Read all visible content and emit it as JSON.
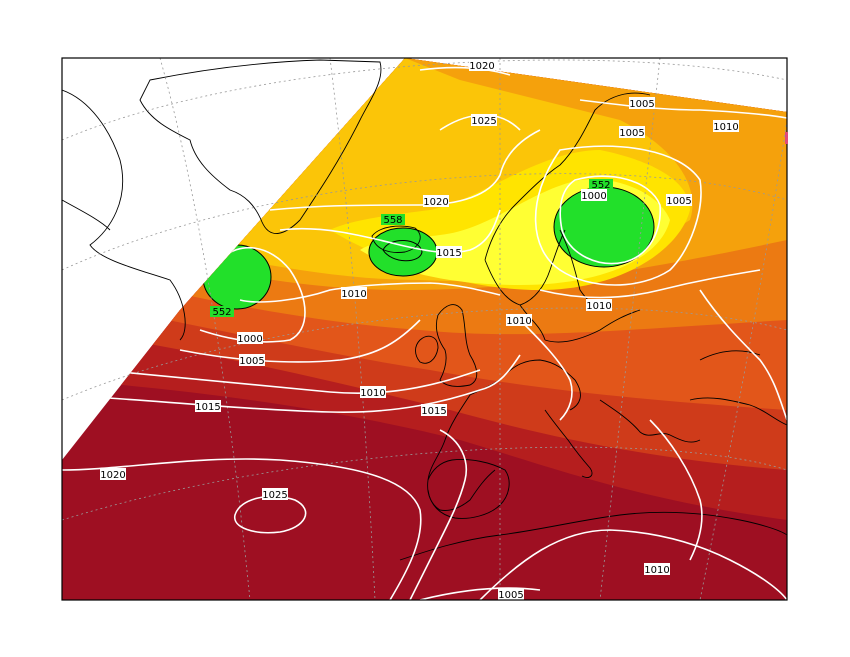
{
  "map": {
    "projection": "polar-stereographic",
    "basemap": "North Atlantic and Europe coastlines",
    "graticule": "dotted-grey",
    "fill_field": {
      "colors": [
        "#9e0f22",
        "#b51e1e",
        "#cf3b1a",
        "#e2561a",
        "#ec7a12",
        "#f5a10c",
        "#fbc508",
        "#ffe400",
        "#ffff33",
        "#22e02a"
      ],
      "low_highlight_color": "#22e02a"
    },
    "contour_color": "#ffffff",
    "isobar_labels": [
      "1020",
      "1025",
      "1005",
      "1005",
      "1010",
      "552",
      "1000",
      "1005",
      "1020",
      "558",
      "1015",
      "1010",
      "1010",
      "1010",
      "552",
      "1000",
      "1005",
      "1010",
      "1015",
      "1015",
      "1020",
      "1025",
      "1010",
      "1005"
    ],
    "marker_labels": [
      "552",
      "558",
      "552"
    ]
  }
}
